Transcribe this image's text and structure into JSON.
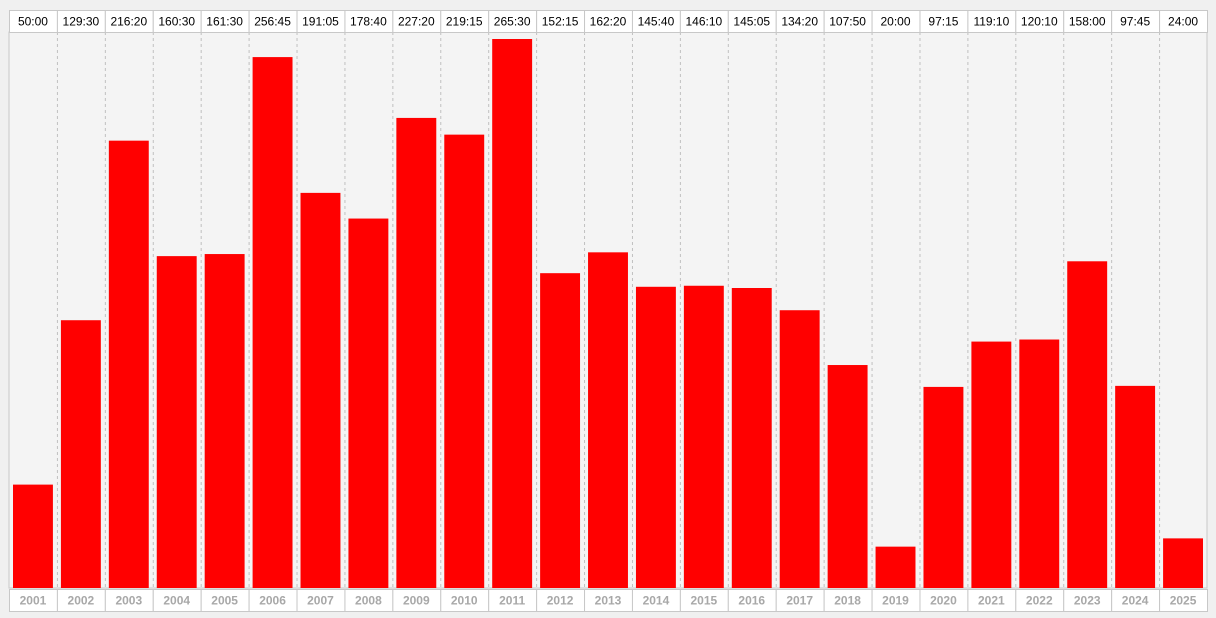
{
  "chart_data": {
    "type": "bar",
    "categories": [
      "2001",
      "2002",
      "2003",
      "2004",
      "2005",
      "2006",
      "2007",
      "2008",
      "2009",
      "2010",
      "2011",
      "2012",
      "2013",
      "2014",
      "2015",
      "2016",
      "2017",
      "2018",
      "2019",
      "2020",
      "2021",
      "2022",
      "2023",
      "2024",
      "2025"
    ],
    "value_labels": [
      "50:00",
      "129:30",
      "216:20",
      "160:30",
      "161:30",
      "256:45",
      "191:05",
      "178:40",
      "227:20",
      "219:15",
      "265:30",
      "152:15",
      "162:20",
      "145:40",
      "146:10",
      "145:05",
      "134:20",
      "107:50",
      "20:00",
      "97:15",
      "119:10",
      "120:10",
      "158:00",
      "97:45",
      "24:00"
    ],
    "values": [
      50.0,
      129.5,
      216.333,
      160.5,
      161.5,
      256.75,
      191.083,
      178.667,
      227.333,
      219.25,
      265.5,
      152.25,
      162.333,
      145.667,
      146.167,
      145.083,
      134.333,
      107.833,
      20.0,
      97.25,
      119.167,
      120.167,
      158.0,
      97.75,
      24.0
    ],
    "title": "",
    "xlabel": "",
    "ylabel": "",
    "ylim": [
      0,
      265.5
    ],
    "grid": "vertical dashed",
    "legend": "none",
    "colors": {
      "bar": "#ff0000",
      "plot_background": "#f4f4f4",
      "page_background": "#f0f0f0",
      "grid": "#c0c0c0",
      "label_box_border": "#c8c8c8",
      "top_label_text": "#000000",
      "year_label_text": "#a8a8a8"
    }
  }
}
